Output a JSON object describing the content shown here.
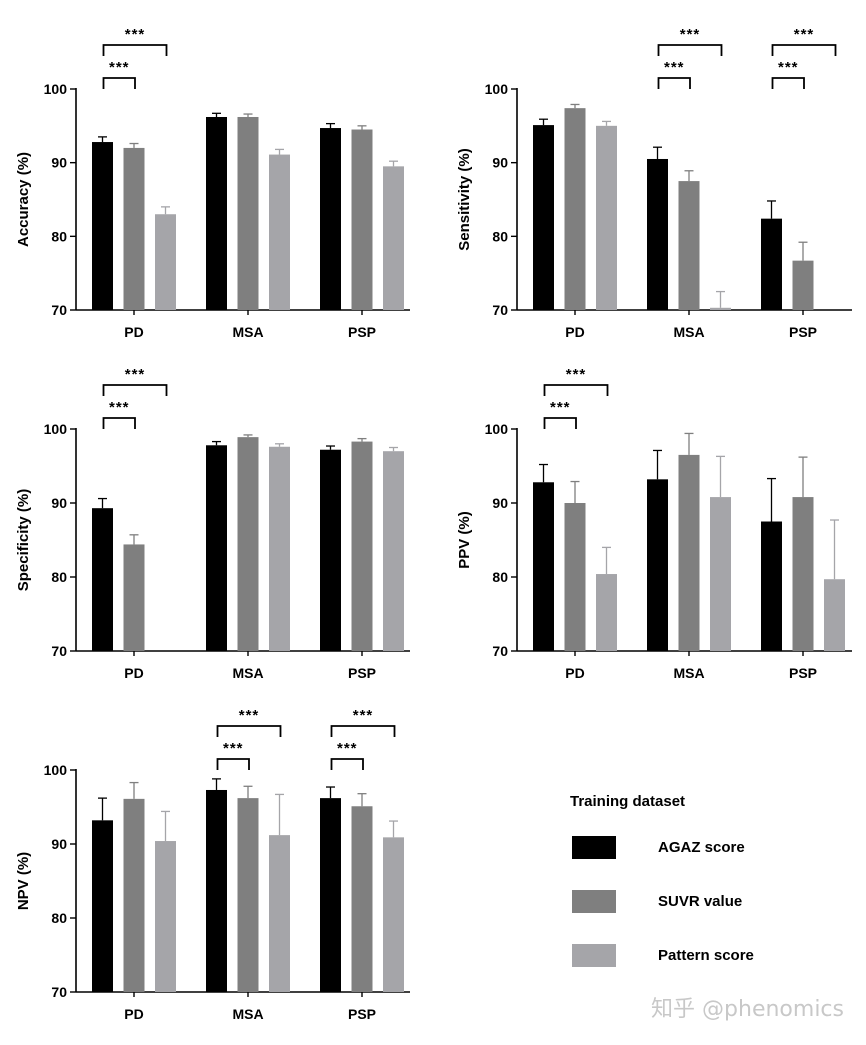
{
  "watermark": "知乎 @phenomics",
  "colors": {
    "black": "#000000",
    "dark_gray": "#7f7f7f",
    "light_gray": "#a5a5a9"
  },
  "legend": {
    "title": "Training dataset",
    "items": [
      {
        "label": "AGAZ score",
        "color": "#000000"
      },
      {
        "label": "SUVR value",
        "color": "#7f7f7f"
      },
      {
        "label": "Pattern score",
        "color": "#a5a5a9"
      }
    ]
  },
  "chart_data": [
    {
      "type": "bar",
      "ylabel": "Accuracy (%)",
      "ylim": [
        70,
        100
      ],
      "yticks": [
        70,
        80,
        90,
        100
      ],
      "categories": [
        "PD",
        "MSA",
        "PSP"
      ],
      "series": [
        {
          "name": "AGAZ score",
          "values": [
            92.8,
            96.2,
            94.7
          ],
          "errors": [
            0.7,
            0.5,
            0.6
          ]
        },
        {
          "name": "SUVR value",
          "values": [
            92.0,
            96.2,
            94.5
          ],
          "errors": [
            0.6,
            0.4,
            0.5
          ]
        },
        {
          "name": "Pattern score",
          "values": [
            83.0,
            91.1,
            89.5
          ],
          "errors": [
            1.0,
            0.7,
            0.7
          ]
        }
      ],
      "significance": [
        {
          "category": "PD",
          "to_series": 1,
          "label": "***"
        },
        {
          "category": "PD",
          "to_series": 2,
          "label": "***"
        }
      ]
    },
    {
      "type": "bar",
      "ylabel": "Sensitivity (%)",
      "ylim": [
        70,
        100
      ],
      "yticks": [
        70,
        80,
        90,
        100
      ],
      "categories": [
        "PD",
        "MSA",
        "PSP"
      ],
      "series": [
        {
          "name": "AGAZ score",
          "values": [
            95.1,
            90.5,
            82.4
          ],
          "errors": [
            0.8,
            1.6,
            2.4
          ]
        },
        {
          "name": "SUVR value",
          "values": [
            97.4,
            87.5,
            76.7
          ],
          "errors": [
            0.5,
            1.4,
            2.5
          ]
        },
        {
          "name": "Pattern score",
          "values": [
            95.0,
            70.3,
            null
          ],
          "errors": [
            0.6,
            2.2,
            null
          ]
        }
      ],
      "significance": [
        {
          "category": "MSA",
          "to_series": 1,
          "label": "***"
        },
        {
          "category": "MSA",
          "to_series": 2,
          "label": "***"
        },
        {
          "category": "PSP",
          "to_series": 1,
          "label": "***"
        },
        {
          "category": "PSP",
          "to_series": 2,
          "label": "***"
        }
      ]
    },
    {
      "type": "bar",
      "ylabel": "Specificity (%)",
      "ylim": [
        70,
        100
      ],
      "yticks": [
        70,
        80,
        90,
        100
      ],
      "categories": [
        "PD",
        "MSA",
        "PSP"
      ],
      "series": [
        {
          "name": "AGAZ score",
          "values": [
            89.3,
            97.8,
            97.2
          ],
          "errors": [
            1.3,
            0.5,
            0.5
          ]
        },
        {
          "name": "SUVR value",
          "values": [
            84.4,
            98.9,
            98.3
          ],
          "errors": [
            1.3,
            0.3,
            0.4
          ]
        },
        {
          "name": "Pattern score",
          "values": [
            null,
            97.6,
            97.0
          ],
          "errors": [
            null,
            0.4,
            0.5
          ]
        }
      ],
      "significance": [
        {
          "category": "PD",
          "to_series": 1,
          "label": "***"
        },
        {
          "category": "PD",
          "to_series": 2,
          "label": "***"
        }
      ]
    },
    {
      "type": "bar",
      "ylabel": "PPV (%)",
      "ylim": [
        70,
        100
      ],
      "yticks": [
        70,
        80,
        90,
        100
      ],
      "categories": [
        "PD",
        "MSA",
        "PSP"
      ],
      "series": [
        {
          "name": "AGAZ score",
          "values": [
            92.8,
            93.2,
            87.5
          ],
          "errors": [
            2.4,
            3.9,
            5.8
          ]
        },
        {
          "name": "SUVR value",
          "values": [
            90.0,
            96.5,
            90.8
          ],
          "errors": [
            2.9,
            2.9,
            5.4
          ]
        },
        {
          "name": "Pattern score",
          "values": [
            80.4,
            90.8,
            79.7
          ],
          "errors": [
            3.6,
            5.5,
            8.0
          ]
        }
      ],
      "significance": [
        {
          "category": "PD",
          "to_series": 1,
          "label": "***"
        },
        {
          "category": "PD",
          "to_series": 2,
          "label": "***"
        }
      ]
    },
    {
      "type": "bar",
      "ylabel": "NPV (%)",
      "ylim": [
        70,
        100
      ],
      "yticks": [
        70,
        80,
        90,
        100
      ],
      "categories": [
        "PD",
        "MSA",
        "PSP"
      ],
      "series": [
        {
          "name": "AGAZ score",
          "values": [
            93.2,
            97.3,
            96.2
          ],
          "errors": [
            3.0,
            1.5,
            1.5
          ]
        },
        {
          "name": "SUVR value",
          "values": [
            96.1,
            96.2,
            95.1
          ],
          "errors": [
            2.2,
            1.6,
            1.7
          ]
        },
        {
          "name": "Pattern score",
          "values": [
            90.4,
            91.2,
            90.9
          ],
          "errors": [
            4.0,
            5.5,
            2.2
          ]
        }
      ],
      "significance": [
        {
          "category": "MSA",
          "to_series": 1,
          "label": "***"
        },
        {
          "category": "MSA",
          "to_series": 2,
          "label": "***"
        },
        {
          "category": "PSP",
          "to_series": 1,
          "label": "***"
        },
        {
          "category": "PSP",
          "to_series": 2,
          "label": "***"
        }
      ]
    }
  ]
}
